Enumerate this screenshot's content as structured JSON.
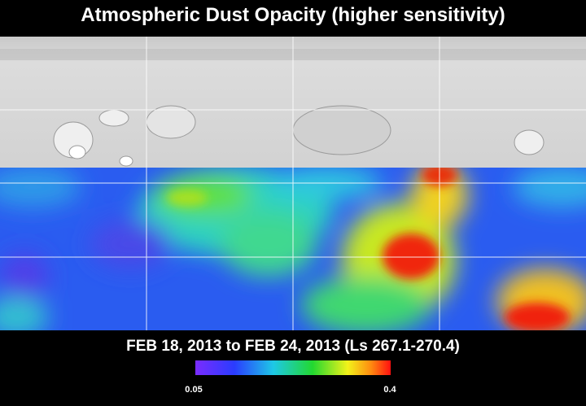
{
  "title": "Atmospheric Dust Opacity (higher sensitivity)",
  "date_range": "FEB 18, 2013 to FEB 24, 2013 (Ls 267.1-270.4)",
  "colorbar": {
    "min": 0.05,
    "max": 0.4
  }
}
